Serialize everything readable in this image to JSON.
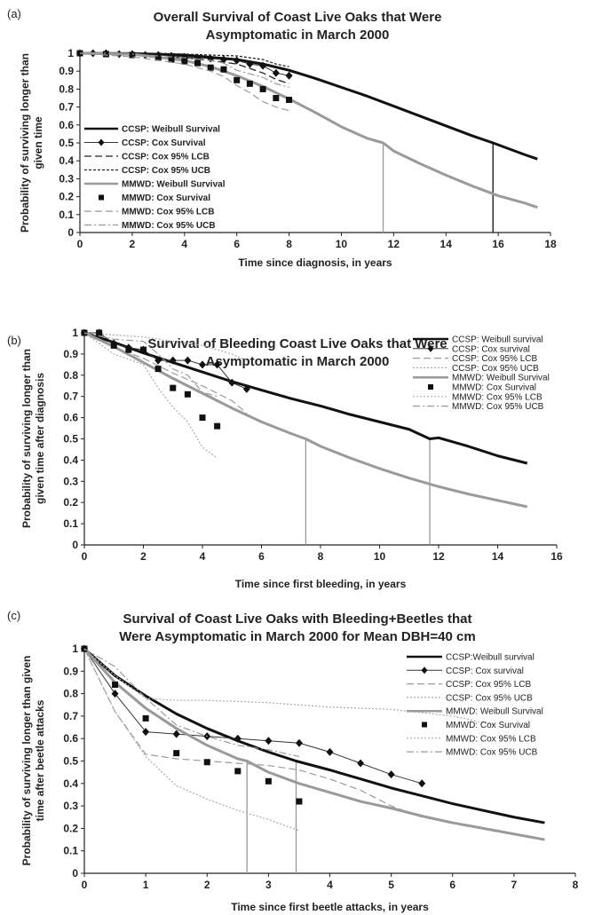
{
  "chart_data": [
    {
      "panel_label": "(a)",
      "type": "line",
      "title": [
        "Overall Survival of Coast Live Oaks that Were",
        "Asymptomatic in March 2000"
      ],
      "xlabel": "Time since diagnosis, in years",
      "ylabel": [
        "Probability of surviving longer than",
        "given time"
      ],
      "xlim": [
        0,
        18
      ],
      "ylim": [
        0,
        1
      ],
      "xticks": [
        0,
        2,
        4,
        6,
        8,
        10,
        12,
        14,
        16,
        18
      ],
      "yticks": [
        0,
        0.1,
        0.2,
        0.3,
        0.4,
        0.5,
        0.6,
        0.7,
        0.8,
        0.9,
        1
      ],
      "xtick_labels": [
        "0",
        "2",
        "4",
        "6",
        "8",
        "10",
        "12",
        "14",
        "16",
        "18"
      ],
      "ytick_labels": [
        "0",
        "0.1",
        "0.2",
        "0.3",
        "0.4",
        "0.5",
        "0.6",
        "0.7",
        "0.8",
        "0.9",
        "1"
      ],
      "legend_position": "left",
      "legend_bold": true,
      "grid": false,
      "series": [
        {
          "name": "CCSP: Weibull Survival",
          "style": "weibull-black",
          "x": [
            0,
            2,
            4,
            6,
            7,
            8,
            9,
            10,
            11,
            12,
            13,
            14,
            15,
            15.8,
            17,
            17.5
          ],
          "y": [
            1,
            0.998,
            0.99,
            0.965,
            0.94,
            0.905,
            0.86,
            0.81,
            0.76,
            0.705,
            0.65,
            0.595,
            0.54,
            0.5,
            0.435,
            0.41
          ]
        },
        {
          "name": "CCSP: Cox Survival",
          "style": "cox-black-diamond",
          "x": [
            0,
            0.5,
            1,
            1.5,
            2,
            2.5,
            3,
            3.5,
            4,
            4.5,
            5,
            5.5,
            6,
            6.5,
            7,
            7.5,
            8
          ],
          "y": [
            1,
            1,
            1,
            0.995,
            0.995,
            0.99,
            0.99,
            0.985,
            0.98,
            0.975,
            0.97,
            0.965,
            0.96,
            0.94,
            0.93,
            0.89,
            0.875
          ]
        },
        {
          "name": "CCSP: Cox 95% LCB",
          "style": "black-longdash",
          "x": [
            0,
            1,
            2,
            3,
            4,
            5,
            6,
            6.5,
            7,
            7.5,
            8
          ],
          "y": [
            1,
            0.995,
            0.99,
            0.98,
            0.975,
            0.96,
            0.94,
            0.915,
            0.89,
            0.855,
            0.83
          ]
        },
        {
          "name": "CCSP: Cox 95% UCB",
          "style": "black-shortdash",
          "x": [
            0,
            1,
            2,
            3,
            4,
            5,
            6,
            6.5,
            7,
            7.5,
            8
          ],
          "y": [
            1,
            1,
            1,
            1,
            0.995,
            0.99,
            0.985,
            0.975,
            0.965,
            0.94,
            0.925
          ]
        },
        {
          "name": "MMWD: Weibull Survival",
          "style": "weibull-gray",
          "x": [
            0,
            2,
            4,
            5,
            6,
            7,
            8,
            9,
            10,
            11,
            11.6,
            12,
            13,
            14,
            15,
            16,
            17,
            17.5
          ],
          "y": [
            1,
            0.995,
            0.96,
            0.925,
            0.875,
            0.815,
            0.745,
            0.67,
            0.59,
            0.525,
            0.5,
            0.455,
            0.385,
            0.32,
            0.26,
            0.205,
            0.165,
            0.14
          ]
        },
        {
          "name": "MMWD: Cox Survival",
          "style": "cox-black-square",
          "x": [
            0,
            1,
            2,
            3,
            3.5,
            4,
            4.5,
            5,
            5.5,
            6,
            6.5,
            7,
            7.5,
            8
          ],
          "y": [
            1,
            0.995,
            0.99,
            0.975,
            0.965,
            0.955,
            0.945,
            0.92,
            0.91,
            0.85,
            0.83,
            0.8,
            0.75,
            0.74
          ]
        },
        {
          "name": "MMWD: Cox 95% LCB",
          "style": "gray-longdash",
          "x": [
            0,
            1,
            2,
            3,
            4,
            5,
            5.5,
            6,
            6.5,
            7,
            7.5,
            8
          ],
          "y": [
            1,
            0.99,
            0.98,
            0.96,
            0.94,
            0.9,
            0.87,
            0.82,
            0.78,
            0.73,
            0.7,
            0.68
          ]
        },
        {
          "name": "MMWD: Cox 95% UCB",
          "style": "gray-dashdot",
          "x": [
            0,
            1,
            2,
            3,
            4,
            5,
            5.5,
            6,
            6.5,
            7,
            7.5,
            8
          ],
          "y": [
            1,
            1,
            0.995,
            0.985,
            0.975,
            0.96,
            0.945,
            0.905,
            0.885,
            0.865,
            0.83,
            0.81
          ]
        }
      ],
      "annotations": [
        {
          "type": "vline",
          "x": 11.6,
          "y": 0.5,
          "color": "#999999"
        },
        {
          "type": "vline",
          "x": 15.8,
          "y": 0.5,
          "color": "#111111"
        }
      ]
    },
    {
      "panel_label": "(b)",
      "type": "line",
      "title": [
        "Survival of Bleeding Coast Live Oaks that Were",
        "Asymptomatic in  March 2000"
      ],
      "xlabel": "Time since first bleeding, in years",
      "ylabel": [
        "Probability of surviving longer than",
        "given time after diagnosis"
      ],
      "xlim": [
        0,
        16
      ],
      "ylim": [
        0,
        1
      ],
      "xticks": [
        0,
        2,
        4,
        6,
        8,
        10,
        12,
        14,
        16
      ],
      "yticks": [
        0,
        0.1,
        0.2,
        0.3,
        0.4,
        0.5,
        0.6,
        0.7,
        0.8,
        0.9,
        1
      ],
      "xtick_labels": [
        "0",
        "2",
        "4",
        "6",
        "8",
        "10",
        "12",
        "14",
        "16"
      ],
      "ytick_labels": [
        "0",
        "0.1",
        "0.2",
        "0.3",
        "0.4",
        "0.5",
        "0.6",
        "0.7",
        "0.8",
        "0.9",
        "1"
      ],
      "legend_position": "top-right",
      "legend_bold": false,
      "grid": false,
      "series": [
        {
          "name": "CCSP: Weibull survival",
          "style": "weibull-black",
          "x": [
            0,
            1,
            2,
            3,
            4,
            5,
            6,
            7,
            8,
            9,
            10,
            11,
            11.7,
            12,
            13,
            14,
            15
          ],
          "y": [
            1,
            0.955,
            0.905,
            0.86,
            0.815,
            0.77,
            0.73,
            0.69,
            0.655,
            0.615,
            0.58,
            0.545,
            0.5,
            0.505,
            0.465,
            0.42,
            0.385
          ]
        },
        {
          "name": "CCSP: Cox survival",
          "style": "cox-black-diamond",
          "x": [
            0,
            0.5,
            1,
            1.5,
            2,
            2.5,
            3,
            3.5,
            4,
            4.5,
            5,
            5.5
          ],
          "y": [
            1,
            1,
            0.95,
            0.93,
            0.92,
            0.87,
            0.87,
            0.87,
            0.85,
            0.85,
            0.765,
            0.735
          ]
        },
        {
          "name": "CCSP: Cox 95% LCB",
          "style": "gray-longdash",
          "x": [
            0,
            1,
            2,
            3,
            4,
            5,
            5.5
          ],
          "y": [
            1,
            0.93,
            0.88,
            0.81,
            0.75,
            0.68,
            0.62
          ]
        },
        {
          "name": "CCSP: Cox 95% UCB",
          "style": "gray-dotted",
          "x": [
            0,
            1,
            2,
            3,
            4,
            5,
            5.5
          ],
          "y": [
            1,
            0.99,
            0.98,
            0.96,
            0.94,
            0.9,
            0.87
          ]
        },
        {
          "name": "MMWD: Weibull Survival",
          "style": "weibull-gray",
          "x": [
            0,
            1,
            2,
            3,
            4,
            5,
            6,
            7,
            7.5,
            8,
            9,
            10,
            11,
            12,
            13,
            14,
            15
          ],
          "y": [
            1,
            0.935,
            0.86,
            0.785,
            0.715,
            0.645,
            0.58,
            0.525,
            0.5,
            0.465,
            0.41,
            0.36,
            0.315,
            0.275,
            0.24,
            0.21,
            0.18
          ]
        },
        {
          "name": "MMWD: Cox Survival",
          "style": "cox-black-square",
          "x": [
            0,
            0.5,
            1,
            1.5,
            2,
            2.5,
            3,
            3.5,
            4,
            4.5
          ],
          "y": [
            1,
            1,
            0.94,
            0.92,
            0.92,
            0.83,
            0.74,
            0.71,
            0.6,
            0.56
          ]
        },
        {
          "name": "MMWD: Cox 95% LCB",
          "style": "gray-dotted",
          "x": [
            0,
            1,
            2,
            2.5,
            3,
            3.5,
            4,
            4.5
          ],
          "y": [
            1,
            0.9,
            0.85,
            0.74,
            0.65,
            0.58,
            0.46,
            0.41
          ]
        },
        {
          "name": "MMWD: Cox 95% UCB",
          "style": "gray-dashdot",
          "x": [
            0,
            1,
            2,
            2.5,
            3,
            3.5,
            4,
            4.5
          ],
          "y": [
            1,
            0.97,
            0.96,
            0.9,
            0.83,
            0.8,
            0.72,
            0.7
          ]
        }
      ],
      "annotations": [
        {
          "type": "vline",
          "x": 7.5,
          "y": 0.5,
          "color": "#999999"
        },
        {
          "type": "vline",
          "x": 11.7,
          "y": 0.5,
          "color": "#999999"
        }
      ]
    },
    {
      "panel_label": "(c)",
      "type": "line",
      "title": [
        "Survival of Coast Live Oaks with Bleeding+Beetles that",
        "Were Asymptomatic in March 2000 for Mean DBH=40 cm"
      ],
      "xlabel": "Time since first beetle attacks, in years",
      "ylabel": [
        "Probability of surviving longer than given",
        "time after beetle attacks"
      ],
      "xlim": [
        0,
        8
      ],
      "ylim": [
        0,
        1
      ],
      "xticks": [
        0,
        1,
        2,
        3,
        4,
        5,
        6,
        7,
        8
      ],
      "yticks": [
        0,
        0.1,
        0.2,
        0.3,
        0.4,
        0.5,
        0.6,
        0.7,
        0.8,
        0.9,
        1
      ],
      "xtick_labels": [
        "0",
        "1",
        "2",
        "3",
        "4",
        "5",
        "6",
        "7",
        "8"
      ],
      "ytick_labels": [
        "0",
        "0.1",
        "0.2",
        "0.3",
        "0.4",
        "0.5",
        "0.6",
        "0.7",
        "0.8",
        "0.9",
        "1"
      ],
      "legend_position": "top-right",
      "legend_bold": false,
      "grid": false,
      "series": [
        {
          "name": "CCSP:Weibull survival",
          "style": "weibull-black",
          "x": [
            0,
            0.5,
            1,
            1.5,
            2,
            2.5,
            3,
            3.45,
            4,
            4.5,
            5,
            5.5,
            6,
            6.5,
            7,
            7.5
          ],
          "y": [
            1,
            0.88,
            0.79,
            0.71,
            0.645,
            0.59,
            0.54,
            0.5,
            0.46,
            0.42,
            0.38,
            0.345,
            0.31,
            0.28,
            0.25,
            0.225
          ]
        },
        {
          "name": "CCSP: Cox survival",
          "style": "cox-black-diamond",
          "x": [
            0,
            0.5,
            1,
            1.5,
            2,
            2.5,
            3,
            3.5,
            4,
            4.5,
            5,
            5.5
          ],
          "y": [
            1,
            0.8,
            0.63,
            0.62,
            0.61,
            0.6,
            0.59,
            0.58,
            0.54,
            0.49,
            0.44,
            0.4
          ]
        },
        {
          "name": "CCSP: Cox 95% LCB",
          "style": "gray-longdash",
          "x": [
            0,
            0.5,
            1,
            1.5,
            2,
            2.5,
            3,
            3.5,
            4,
            4.5,
            5,
            5.5
          ],
          "y": [
            1,
            0.72,
            0.53,
            0.51,
            0.5,
            0.49,
            0.48,
            0.46,
            0.42,
            0.37,
            0.3,
            0.25
          ]
        },
        {
          "name": "CCSP: Cox 95% UCB",
          "style": "gray-dotted",
          "x": [
            0,
            0.5,
            1,
            1.5,
            2,
            3,
            4,
            5,
            6,
            6.7
          ],
          "y": [
            1,
            0.88,
            0.78,
            0.77,
            0.77,
            0.76,
            0.74,
            0.73,
            0.7,
            0.66
          ]
        },
        {
          "name": "MMWD: Weibull Survival",
          "style": "weibull-gray",
          "x": [
            0,
            0.5,
            1,
            1.5,
            2,
            2.5,
            2.65,
            3,
            3.5,
            4,
            4.5,
            5,
            5.5,
            6,
            6.5,
            7,
            7.5
          ],
          "y": [
            1,
            0.85,
            0.735,
            0.645,
            0.57,
            0.51,
            0.5,
            0.45,
            0.4,
            0.36,
            0.32,
            0.29,
            0.255,
            0.225,
            0.2,
            0.175,
            0.15
          ]
        },
        {
          "name": "MMWD: Cox Survival",
          "style": "cox-black-square",
          "x": [
            0,
            0.5,
            1,
            1.5,
            2,
            2.5,
            3,
            3.5
          ],
          "y": [
            1,
            0.84,
            0.69,
            0.535,
            0.495,
            0.455,
            0.41,
            0.32
          ]
        },
        {
          "name": "MMWD: Cox 95% LCB",
          "style": "gray-dotted",
          "x": [
            0,
            0.5,
            1,
            1.5,
            2,
            2.5,
            3,
            3.5
          ],
          "y": [
            1,
            0.72,
            0.52,
            0.39,
            0.33,
            0.28,
            0.24,
            0.19
          ]
        },
        {
          "name": "MMWD: Cox 95% UCB",
          "style": "gray-dashdot",
          "x": [
            0,
            0.5,
            1,
            1.5,
            2,
            2.5,
            3,
            3.5
          ],
          "y": [
            1,
            0.92,
            0.78,
            0.66,
            0.61,
            0.57,
            0.55,
            0.52
          ]
        }
      ],
      "annotations": [
        {
          "type": "vline",
          "x": 2.65,
          "y": 0.5,
          "color": "#999999"
        },
        {
          "type": "vline",
          "x": 3.45,
          "y": 0.5,
          "color": "#999999"
        }
      ]
    }
  ]
}
